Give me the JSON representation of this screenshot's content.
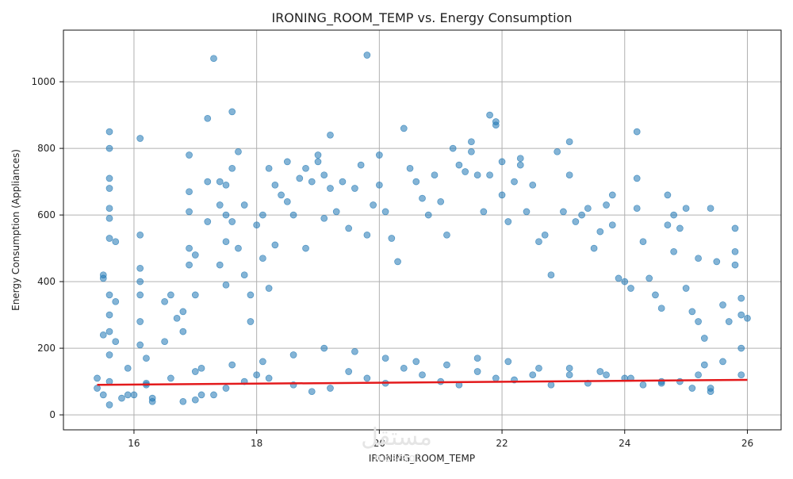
{
  "chart_data": {
    "type": "scatter",
    "title": "IRONING_ROOM_TEMP vs. Energy Consumption",
    "xlabel": "IRONING_ROOM_TEMP",
    "ylabel": "Energy Consumption (Appliances)",
    "xlim": [
      14.85,
      26.55
    ],
    "ylim": [
      -45,
      1155
    ],
    "x_ticks": [
      16,
      18,
      20,
      22,
      24,
      26
    ],
    "y_ticks": [
      0,
      200,
      400,
      600,
      800,
      1000
    ],
    "grid": true,
    "point_color": "#1f77b4",
    "point_opacity": 0.55,
    "trend_color": "#e31a1c",
    "trend_line": {
      "x": [
        15.4,
        26.0
      ],
      "y": [
        90,
        105
      ]
    },
    "series": [
      {
        "points": [
          [
            15.4,
            110
          ],
          [
            15.5,
            420
          ],
          [
            15.5,
            410
          ],
          [
            15.5,
            240
          ],
          [
            15.6,
            850
          ],
          [
            15.6,
            800
          ],
          [
            15.6,
            710
          ],
          [
            15.6,
            680
          ],
          [
            15.6,
            620
          ],
          [
            15.6,
            590
          ],
          [
            15.6,
            530
          ],
          [
            15.7,
            520
          ],
          [
            15.6,
            360
          ],
          [
            15.7,
            340
          ],
          [
            15.6,
            300
          ],
          [
            15.6,
            250
          ],
          [
            15.7,
            220
          ],
          [
            15.6,
            180
          ],
          [
            15.5,
            60
          ],
          [
            15.6,
            30
          ],
          [
            15.8,
            50
          ],
          [
            15.9,
            140
          ],
          [
            16.0,
            60
          ],
          [
            16.1,
            830
          ],
          [
            16.1,
            540
          ],
          [
            16.1,
            440
          ],
          [
            16.1,
            400
          ],
          [
            16.1,
            360
          ],
          [
            16.1,
            280
          ],
          [
            16.1,
            210
          ],
          [
            16.2,
            170
          ],
          [
            16.2,
            90
          ],
          [
            16.3,
            50
          ],
          [
            16.5,
            220
          ],
          [
            16.5,
            340
          ],
          [
            16.6,
            360
          ],
          [
            16.7,
            290
          ],
          [
            16.8,
            310
          ],
          [
            16.8,
            250
          ],
          [
            16.9,
            780
          ],
          [
            16.9,
            670
          ],
          [
            16.9,
            610
          ],
          [
            16.9,
            500
          ],
          [
            16.9,
            450
          ],
          [
            17.0,
            480
          ],
          [
            17.0,
            360
          ],
          [
            17.0,
            130
          ],
          [
            17.1,
            60
          ],
          [
            17.2,
            700
          ],
          [
            17.2,
            580
          ],
          [
            17.3,
            1070
          ],
          [
            17.2,
            890
          ],
          [
            17.4,
            700
          ],
          [
            17.4,
            630
          ],
          [
            17.5,
            690
          ],
          [
            17.5,
            600
          ],
          [
            17.5,
            520
          ],
          [
            17.4,
            450
          ],
          [
            17.5,
            390
          ],
          [
            17.6,
            910
          ],
          [
            17.6,
            740
          ],
          [
            17.6,
            580
          ],
          [
            17.7,
            790
          ],
          [
            17.7,
            500
          ],
          [
            17.8,
            630
          ],
          [
            17.8,
            420
          ],
          [
            17.9,
            360
          ],
          [
            17.9,
            280
          ],
          [
            18.0,
            570
          ],
          [
            18.1,
            600
          ],
          [
            18.1,
            470
          ],
          [
            18.2,
            740
          ],
          [
            18.2,
            380
          ],
          [
            18.3,
            690
          ],
          [
            18.3,
            510
          ],
          [
            18.4,
            660
          ],
          [
            18.5,
            760
          ],
          [
            18.5,
            640
          ],
          [
            18.6,
            600
          ],
          [
            18.7,
            710
          ],
          [
            18.8,
            740
          ],
          [
            18.8,
            500
          ],
          [
            18.9,
            700
          ],
          [
            19.0,
            780
          ],
          [
            19.0,
            760
          ],
          [
            19.1,
            720
          ],
          [
            19.1,
            590
          ],
          [
            19.2,
            840
          ],
          [
            19.2,
            680
          ],
          [
            19.3,
            610
          ],
          [
            19.4,
            700
          ],
          [
            19.5,
            560
          ],
          [
            19.6,
            680
          ],
          [
            19.7,
            750
          ],
          [
            19.8,
            1080
          ],
          [
            19.8,
            540
          ],
          [
            19.9,
            630
          ],
          [
            20.0,
            780
          ],
          [
            20.0,
            690
          ],
          [
            20.1,
            610
          ],
          [
            20.2,
            530
          ],
          [
            20.3,
            460
          ],
          [
            20.4,
            860
          ],
          [
            20.5,
            740
          ],
          [
            20.6,
            700
          ],
          [
            20.7,
            650
          ],
          [
            20.8,
            600
          ],
          [
            20.9,
            720
          ],
          [
            21.0,
            640
          ],
          [
            21.1,
            540
          ],
          [
            21.2,
            800
          ],
          [
            21.3,
            750
          ],
          [
            21.4,
            730
          ],
          [
            21.5,
            820
          ],
          [
            21.5,
            790
          ],
          [
            21.6,
            720
          ],
          [
            21.7,
            610
          ],
          [
            21.8,
            900
          ],
          [
            21.8,
            720
          ],
          [
            21.9,
            870
          ],
          [
            21.9,
            880
          ],
          [
            22.0,
            760
          ],
          [
            22.0,
            660
          ],
          [
            22.1,
            580
          ],
          [
            22.2,
            700
          ],
          [
            22.3,
            750
          ],
          [
            22.3,
            770
          ],
          [
            22.4,
            610
          ],
          [
            22.5,
            690
          ],
          [
            22.6,
            520
          ],
          [
            22.7,
            540
          ],
          [
            22.8,
            420
          ],
          [
            22.9,
            790
          ],
          [
            23.0,
            610
          ],
          [
            23.1,
            720
          ],
          [
            23.1,
            820
          ],
          [
            23.2,
            580
          ],
          [
            23.3,
            600
          ],
          [
            23.4,
            620
          ],
          [
            23.5,
            500
          ],
          [
            23.6,
            550
          ],
          [
            23.7,
            630
          ],
          [
            23.8,
            660
          ],
          [
            23.8,
            570
          ],
          [
            23.9,
            410
          ],
          [
            24.0,
            400
          ],
          [
            24.1,
            380
          ],
          [
            24.2,
            850
          ],
          [
            24.2,
            710
          ],
          [
            24.2,
            620
          ],
          [
            24.3,
            520
          ],
          [
            24.4,
            410
          ],
          [
            24.5,
            360
          ],
          [
            24.6,
            320
          ],
          [
            24.7,
            660
          ],
          [
            24.7,
            570
          ],
          [
            24.8,
            490
          ],
          [
            24.8,
            600
          ],
          [
            24.9,
            560
          ],
          [
            25.0,
            620
          ],
          [
            25.0,
            380
          ],
          [
            25.1,
            310
          ],
          [
            25.2,
            470
          ],
          [
            25.2,
            280
          ],
          [
            25.3,
            230
          ],
          [
            25.4,
            620
          ],
          [
            25.5,
            460
          ],
          [
            25.6,
            330
          ],
          [
            25.7,
            280
          ],
          [
            25.8,
            560
          ],
          [
            25.8,
            490
          ],
          [
            25.8,
            450
          ],
          [
            25.9,
            350
          ],
          [
            25.9,
            300
          ],
          [
            26.0,
            290
          ],
          [
            25.9,
            200
          ],
          [
            25.9,
            120
          ],
          [
            25.6,
            160
          ],
          [
            25.3,
            150
          ],
          [
            15.4,
            80
          ],
          [
            16.3,
            40
          ],
          [
            16.8,
            40
          ],
          [
            17.0,
            45
          ],
          [
            17.3,
            60
          ],
          [
            17.5,
            80
          ],
          [
            17.8,
            100
          ],
          [
            18.0,
            120
          ],
          [
            18.2,
            110
          ],
          [
            18.6,
            90
          ],
          [
            18.9,
            70
          ],
          [
            19.2,
            80
          ],
          [
            19.5,
            130
          ],
          [
            19.8,
            110
          ],
          [
            20.1,
            95
          ],
          [
            20.4,
            140
          ],
          [
            20.7,
            120
          ],
          [
            21.0,
            100
          ],
          [
            21.3,
            90
          ],
          [
            21.6,
            130
          ],
          [
            21.9,
            110
          ],
          [
            22.2,
            105
          ],
          [
            22.5,
            120
          ],
          [
            22.8,
            90
          ],
          [
            23.1,
            140
          ],
          [
            23.4,
            95
          ],
          [
            23.7,
            120
          ],
          [
            24.0,
            110
          ],
          [
            24.3,
            90
          ],
          [
            24.6,
            100
          ],
          [
            24.9,
            100
          ],
          [
            25.2,
            120
          ],
          [
            25.4,
            80
          ],
          [
            15.6,
            100
          ],
          [
            15.9,
            60
          ],
          [
            16.2,
            95
          ],
          [
            16.6,
            110
          ],
          [
            17.1,
            140
          ],
          [
            17.6,
            150
          ],
          [
            18.1,
            160
          ],
          [
            18.6,
            180
          ],
          [
            19.1,
            200
          ],
          [
            19.6,
            190
          ],
          [
            20.1,
            170
          ],
          [
            20.6,
            160
          ],
          [
            21.1,
            150
          ],
          [
            21.6,
            170
          ],
          [
            22.1,
            160
          ],
          [
            22.6,
            140
          ],
          [
            23.1,
            120
          ],
          [
            23.6,
            130
          ],
          [
            24.1,
            110
          ],
          [
            24.6,
            95
          ],
          [
            25.1,
            80
          ],
          [
            25.4,
            70
          ]
        ]
      }
    ]
  },
  "watermark": {
    "text": "مستقل",
    "sub": "mostaql"
  }
}
